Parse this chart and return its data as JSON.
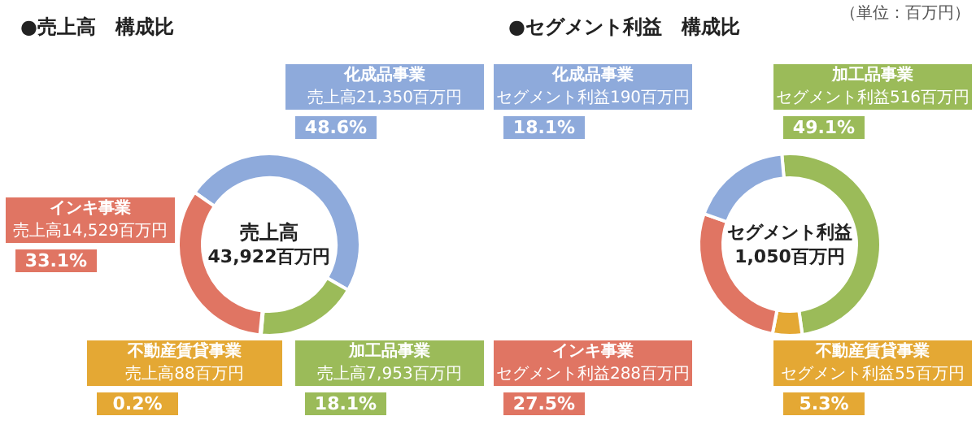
{
  "chart_data": [
    {
      "type": "donut",
      "title": "●売上高　構成比",
      "categories": [
        "化成品事業",
        "加工品事業",
        "不動産賃貸事業",
        "インキ事業"
      ],
      "values": [
        21350,
        7953,
        88,
        14529
      ],
      "colors": [
        "#8eaadb",
        "#9bbb59",
        "#e4a834",
        "#e07563"
      ],
      "value_labels": [
        "売上高21,350百万円",
        "売上高7,953百万円",
        "売上高88百万円",
        "売上高14,529百万円"
      ],
      "annotations": [
        "売上高",
        "43,922百万円",
        {
          "text": "48.6%",
          "x": "化成品事業"
        },
        {
          "text": "18.1%",
          "x": "加工品事業"
        },
        {
          "text": "0.2%",
          "x": "不動産賃貸事業"
        },
        {
          "text": "33.1%",
          "x": "インキ事業"
        }
      ]
    },
    {
      "type": "donut",
      "title": "●セグメント利益　構成比",
      "subtitle": "（単位：百万円）",
      "categories": [
        "加工品事業",
        "不動産賃貸事業",
        "インキ事業",
        "化成品事業"
      ],
      "values": [
        516,
        55,
        288,
        190
      ],
      "colors": [
        "#9bbb59",
        "#e4a834",
        "#e07563",
        "#8eaadb"
      ],
      "value_labels": [
        "セグメント利益516百万円",
        "セグメント利益55百万円",
        "セグメント利益288百万円",
        "セグメント利益190百万円"
      ],
      "annotations": [
        "セグメント利益",
        "1,050百万円",
        {
          "text": "49.1%",
          "x": "加工品事業"
        },
        {
          "text": "5.3%",
          "x": "不動産賃貸事業"
        },
        {
          "text": "27.5%",
          "x": "インキ事業"
        },
        {
          "text": "18.1%",
          "x": "化成品事業"
        }
      ]
    }
  ]
}
